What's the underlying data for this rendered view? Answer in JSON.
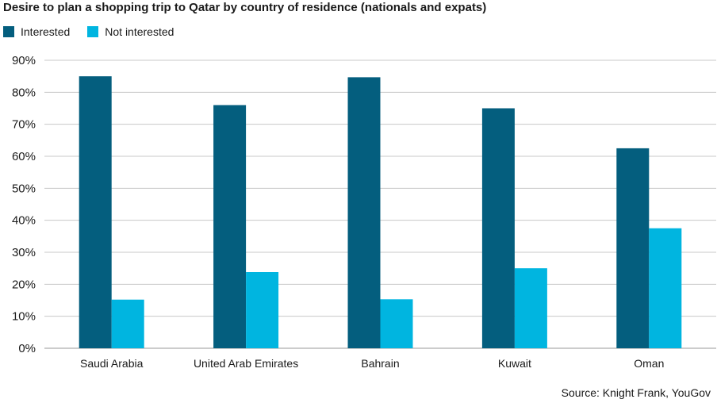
{
  "colors": {
    "interested": "#045e7e",
    "not_interested": "#00b5e0",
    "grid": "#c8c8c8",
    "axis": "#999999"
  },
  "chart_data": {
    "type": "bar",
    "title": "Desire to plan a shopping trip to Qatar by country of residence (nationals and expats)",
    "categories": [
      "Saudi Arabia",
      "United Arab Emirates",
      "Bahrain",
      "Kuwait",
      "Oman"
    ],
    "series": [
      {
        "name": "Interested",
        "values": [
          85,
          76,
          84.7,
          75,
          62.5
        ]
      },
      {
        "name": "Not interested",
        "values": [
          15.2,
          23.8,
          15.3,
          25,
          37.5
        ]
      }
    ],
    "ylim": [
      0,
      90
    ],
    "yticks": [
      0,
      10,
      20,
      30,
      40,
      50,
      60,
      70,
      80,
      90
    ],
    "ytick_labels": [
      "0%",
      "10%",
      "20%",
      "30%",
      "40%",
      "50%",
      "60%",
      "70%",
      "80%",
      "90%"
    ],
    "grid": true,
    "legend_position": "top-left"
  },
  "source": "Source: Knight Frank, YouGov"
}
